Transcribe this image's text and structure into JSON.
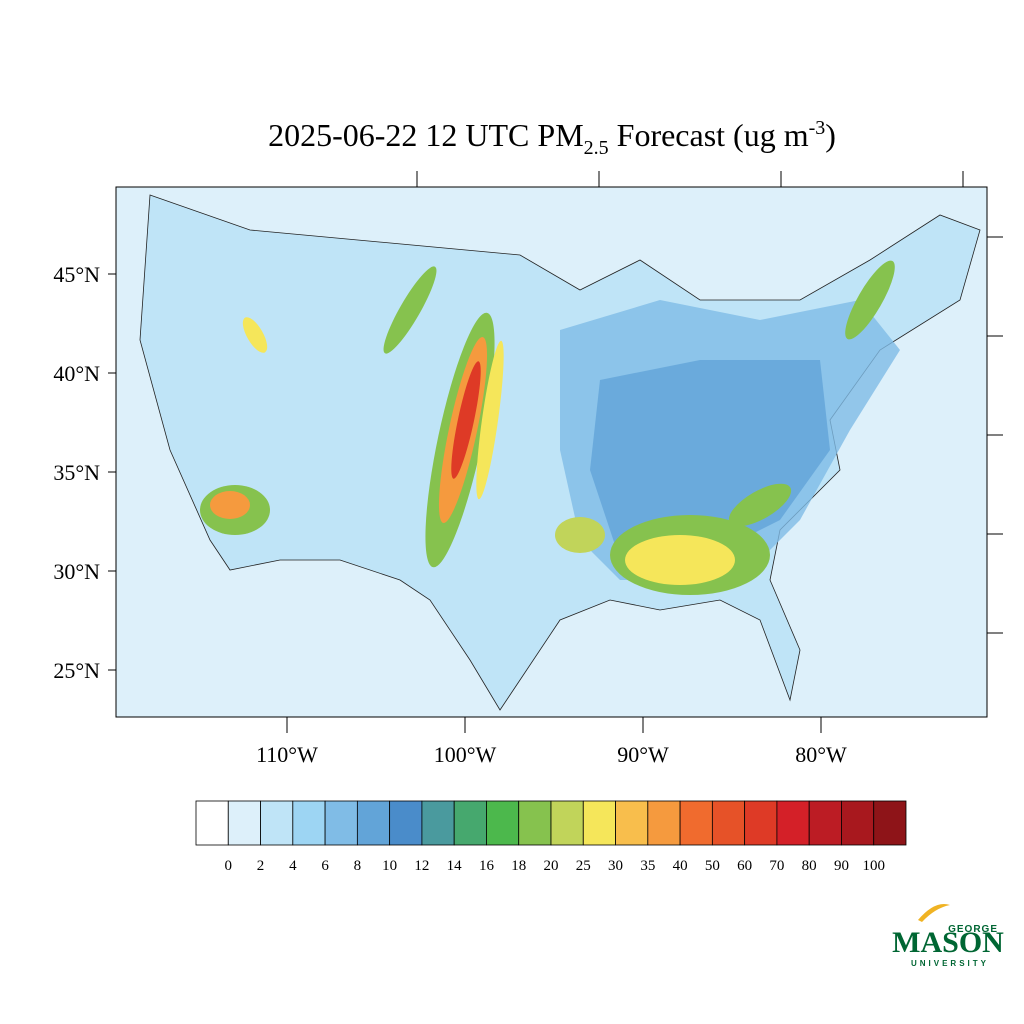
{
  "title": {
    "main": "2025-06-22 12 UTC PM",
    "sub": "2.5",
    "rest": " Forecast (ug m",
    "sup": "-3",
    "end": ")"
  },
  "map": {
    "lat_ticks": [
      {
        "value": 45,
        "label": "45°N"
      },
      {
        "value": 40,
        "label": "40°N"
      },
      {
        "value": 35,
        "label": "35°N"
      },
      {
        "value": 30,
        "label": "30°N"
      },
      {
        "value": 25,
        "label": "25°N"
      }
    ],
    "lon_ticks": [
      {
        "value": -110,
        "label": "110°W"
      },
      {
        "value": -100,
        "label": "100°W"
      },
      {
        "value": -90,
        "label": "90°W"
      },
      {
        "value": -80,
        "label": "80°W"
      }
    ]
  },
  "colorbar": {
    "levels": [
      0,
      2,
      4,
      6,
      8,
      10,
      12,
      14,
      16,
      18,
      20,
      25,
      30,
      35,
      40,
      50,
      60,
      70,
      80,
      90,
      100
    ],
    "colors": [
      "#ffffff",
      "#ddf0fa",
      "#bfe4f7",
      "#9dd5f3",
      "#80bce6",
      "#62a4d8",
      "#4a8cca",
      "#4a9a9e",
      "#46a86e",
      "#4cb84c",
      "#86c24e",
      "#c1d45a",
      "#f5e65a",
      "#f8be4c",
      "#f59a3e",
      "#f06b2e",
      "#e65228",
      "#de3a26",
      "#d42028",
      "#bc1c24",
      "#a8181e",
      "#8e1418"
    ]
  },
  "logo": {
    "top": "GEORGE",
    "name": "MASON",
    "bottom": "UNIVERSITY"
  }
}
